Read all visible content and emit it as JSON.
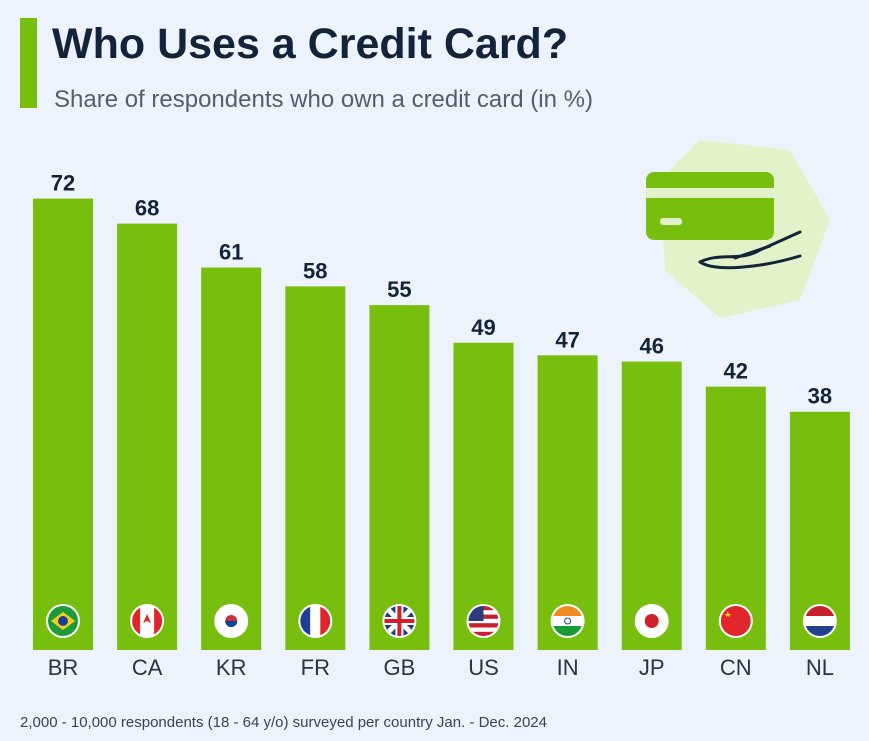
{
  "chart_data": {
    "type": "bar",
    "title": "Who Uses a Credit Card?",
    "subtitle": "Share of respondents who own a credit card (in %)",
    "categories": [
      "BR",
      "CA",
      "KR",
      "FR",
      "GB",
      "US",
      "IN",
      "JP",
      "CN",
      "NL"
    ],
    "values": [
      72,
      68,
      61,
      58,
      55,
      49,
      47,
      46,
      42,
      38
    ],
    "color": "#78be0f",
    "note": "2,000 - 10,000 respondents (18 - 64 y/o) surveyed per country Jan. - Dec. 2024"
  }
}
